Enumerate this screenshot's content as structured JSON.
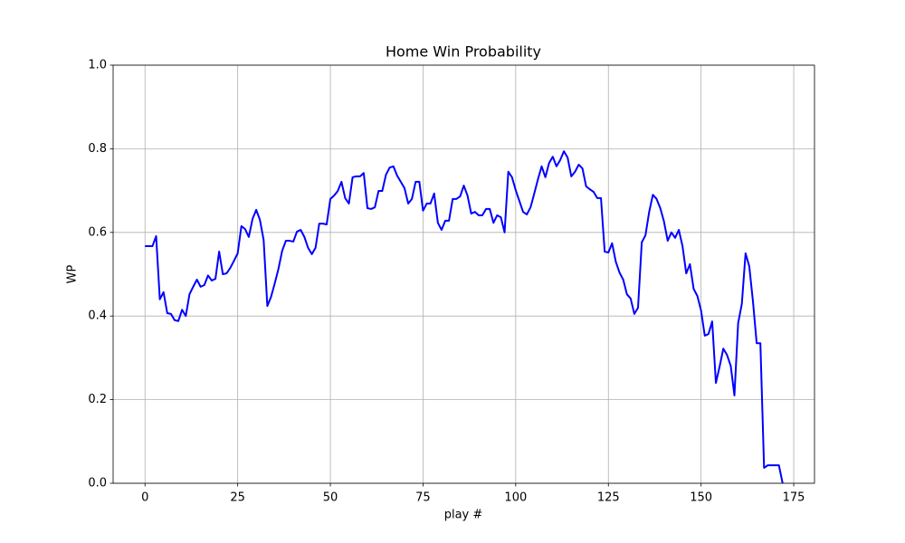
{
  "chart_data": {
    "type": "line",
    "title": "Home Win Probability",
    "xlabel": "play #",
    "ylabel": "WP",
    "x": [
      0,
      1,
      2,
      3,
      4,
      5,
      6,
      7,
      8,
      9,
      10,
      11,
      12,
      13,
      14,
      15,
      16,
      17,
      18,
      19,
      20,
      21,
      22,
      23,
      24,
      25,
      26,
      27,
      28,
      29,
      30,
      31,
      32,
      33,
      34,
      35,
      36,
      37,
      38,
      39,
      40,
      41,
      42,
      43,
      44,
      45,
      46,
      47,
      48,
      49,
      50,
      51,
      52,
      53,
      54,
      55,
      56,
      57,
      58,
      59,
      60,
      61,
      62,
      63,
      64,
      65,
      66,
      67,
      68,
      69,
      70,
      71,
      72,
      73,
      74,
      75,
      76,
      77,
      78,
      79,
      80,
      81,
      82,
      83,
      84,
      85,
      86,
      87,
      88,
      89,
      90,
      91,
      92,
      93,
      94,
      95,
      96,
      97,
      98,
      99,
      100,
      101,
      102,
      103,
      104,
      105,
      106,
      107,
      108,
      109,
      110,
      111,
      112,
      113,
      114,
      115,
      116,
      117,
      118,
      119,
      120,
      121,
      122,
      123,
      124,
      125,
      126,
      127,
      128,
      129,
      130,
      131,
      132,
      133,
      134,
      135,
      136,
      137,
      138,
      139,
      140,
      141,
      142,
      143,
      144,
      145,
      146,
      147,
      148,
      149,
      150,
      151,
      152,
      153,
      154,
      155,
      156,
      157,
      158,
      159,
      160,
      161,
      162,
      163,
      164,
      165,
      166,
      167,
      168,
      169,
      170,
      171,
      172
    ],
    "series": [
      {
        "name": "WP",
        "color": "#0000ff",
        "values": [
          0.567,
          0.567,
          0.567,
          0.591,
          0.44,
          0.457,
          0.407,
          0.405,
          0.39,
          0.388,
          0.415,
          0.4,
          0.452,
          0.47,
          0.487,
          0.47,
          0.474,
          0.497,
          0.485,
          0.489,
          0.554,
          0.5,
          0.502,
          0.515,
          0.532,
          0.55,
          0.615,
          0.608,
          0.589,
          0.632,
          0.654,
          0.63,
          0.582,
          0.424,
          0.446,
          0.478,
          0.513,
          0.556,
          0.58,
          0.58,
          0.578,
          0.602,
          0.606,
          0.589,
          0.563,
          0.548,
          0.563,
          0.621,
          0.621,
          0.619,
          0.68,
          0.688,
          0.699,
          0.721,
          0.682,
          0.669,
          0.732,
          0.734,
          0.734,
          0.742,
          0.658,
          0.656,
          0.66,
          0.699,
          0.699,
          0.738,
          0.755,
          0.758,
          0.736,
          0.721,
          0.706,
          0.669,
          0.68,
          0.721,
          0.721,
          0.652,
          0.669,
          0.669,
          0.693,
          0.623,
          0.606,
          0.628,
          0.628,
          0.68,
          0.68,
          0.686,
          0.712,
          0.688,
          0.645,
          0.649,
          0.641,
          0.641,
          0.656,
          0.656,
          0.623,
          0.641,
          0.636,
          0.6,
          0.745,
          0.732,
          0.701,
          0.675,
          0.649,
          0.643,
          0.66,
          0.693,
          0.727,
          0.758,
          0.732,
          0.766,
          0.781,
          0.758,
          0.773,
          0.794,
          0.779,
          0.734,
          0.745,
          0.762,
          0.753,
          0.71,
          0.703,
          0.697,
          0.682,
          0.682,
          0.554,
          0.552,
          0.574,
          0.53,
          0.504,
          0.487,
          0.452,
          0.442,
          0.405,
          0.42,
          0.576,
          0.593,
          0.649,
          0.69,
          0.68,
          0.658,
          0.626,
          0.58,
          0.6,
          0.587,
          0.606,
          0.567,
          0.502,
          0.524,
          0.465,
          0.448,
          0.413,
          0.353,
          0.357,
          0.387,
          0.24,
          0.279,
          0.322,
          0.307,
          0.281,
          0.21,
          0.383,
          0.429,
          0.55,
          0.519,
          0.435,
          0.335,
          0.335,
          0.037,
          0.043,
          0.043,
          0.043,
          0.043,
          0.0
        ]
      }
    ],
    "xlim": [
      -8.6,
      180.6
    ],
    "xticks": [
      0,
      25,
      50,
      75,
      100,
      125,
      150,
      175
    ],
    "ylim": [
      0,
      1
    ],
    "yticks": [
      {
        "value": 0,
        "label": "0.0"
      },
      0.2,
      0.4,
      0.6,
      0.8,
      {
        "value": 1,
        "label": "1.0"
      }
    ],
    "grid": true
  }
}
